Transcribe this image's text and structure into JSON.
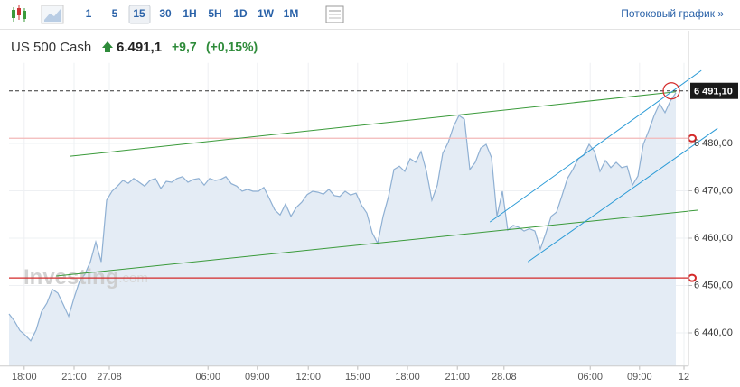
{
  "toolbar": {
    "intervals": [
      "1",
      "5",
      "15",
      "30",
      "1H",
      "5H",
      "1D",
      "1W",
      "1M"
    ],
    "selected": 2,
    "stream_link": "Потоковый график »"
  },
  "header": {
    "instrument": "US 500 Cash",
    "price": "6.491,1",
    "change": "+9,7",
    "change_pct": "(+0,15%)"
  },
  "watermark": {
    "brand": "Investing",
    "suffix": ".com"
  },
  "chart_data": {
    "type": "area",
    "color": "#8fb0d3",
    "fill": "#e4ecf5",
    "grid": true,
    "xlim": [
      0,
      125.33
    ],
    "ylim": [
      6433,
      6497
    ],
    "yticks": [
      {
        "value": 6440,
        "label": "6 440,00"
      },
      {
        "value": 6450,
        "label": "6 450,00"
      },
      {
        "value": 6460,
        "label": "6 460,00"
      },
      {
        "value": 6470,
        "label": "6 470,00"
      },
      {
        "value": 6480,
        "label": "6 480,00"
      }
    ],
    "xticks": [
      {
        "value": 2.8,
        "label": "18:00"
      },
      {
        "value": 12,
        "label": "21:00"
      },
      {
        "value": 18.5,
        "label": "27.08"
      },
      {
        "value": 36.7,
        "label": "06:00"
      },
      {
        "value": 45.8,
        "label": "09:00"
      },
      {
        "value": 55.2,
        "label": "12:00"
      },
      {
        "value": 64.3,
        "label": "15:00"
      },
      {
        "value": 73.5,
        "label": "18:00"
      },
      {
        "value": 82.7,
        "label": "21:00"
      },
      {
        "value": 91.3,
        "label": "28.08"
      },
      {
        "value": 107.2,
        "label": "06:00"
      },
      {
        "value": 116.3,
        "label": "09:00"
      },
      {
        "value": 124.5,
        "label": "12"
      }
    ],
    "last_price": {
      "value": 6491.1,
      "label": "6 491,10"
    },
    "series": [
      {
        "color": "#8fb0d3",
        "x": [
          0,
          1,
          2,
          3,
          4,
          5,
          6,
          7,
          8,
          9,
          10,
          11,
          12,
          13,
          14,
          15,
          16,
          17,
          18,
          19,
          20,
          21,
          22,
          23,
          24,
          25,
          26,
          27,
          28,
          29,
          30,
          31,
          32,
          33,
          34,
          35,
          36,
          37,
          38,
          39,
          40,
          41,
          42,
          43,
          44,
          45,
          46,
          47,
          48,
          49,
          50,
          51,
          52,
          53,
          54,
          55,
          56,
          57,
          58,
          59,
          60,
          61,
          62,
          63,
          64,
          65,
          66,
          67,
          68,
          69,
          70,
          71,
          72,
          73,
          74,
          75,
          76,
          77,
          78,
          79,
          80,
          81,
          82,
          83,
          84,
          85,
          86,
          87,
          88,
          89,
          90,
          91,
          92,
          93,
          94,
          95,
          96,
          97,
          98,
          99,
          100,
          101,
          102,
          103,
          104,
          105,
          106,
          107,
          108,
          109,
          110,
          111,
          112,
          113,
          114,
          115,
          116,
          117,
          118,
          119,
          120,
          121,
          122,
          123
        ],
        "values": [
          6444.0,
          6442.5,
          6440.5,
          6439.5,
          6438.3,
          6440.6,
          6444.5,
          6446.3,
          6449.2,
          6448.4,
          6446.0,
          6443.5,
          6447.4,
          6450.9,
          6452.4,
          6455.0,
          6459.2,
          6455.0,
          6468.0,
          6469.9,
          6471.0,
          6472.2,
          6471.6,
          6472.6,
          6471.8,
          6471.0,
          6472.2,
          6472.6,
          6470.5,
          6472.0,
          6471.8,
          6472.6,
          6473.0,
          6471.8,
          6472.4,
          6472.6,
          6471.2,
          6472.6,
          6472.2,
          6472.4,
          6473.0,
          6471.5,
          6471.0,
          6469.9,
          6470.3,
          6469.9,
          6469.9,
          6470.7,
          6468.4,
          6466.0,
          6464.9,
          6467.2,
          6464.6,
          6466.5,
          6467.6,
          6469.2,
          6469.9,
          6469.7,
          6469.3,
          6470.3,
          6469.0,
          6468.8,
          6469.9,
          6469.1,
          6469.5,
          6467.0,
          6465.3,
          6461.1,
          6458.9,
          6464.6,
          6468.8,
          6474.5,
          6475.2,
          6474.1,
          6476.8,
          6476.0,
          6478.3,
          6474.1,
          6468.0,
          6471.2,
          6477.9,
          6480.2,
          6483.6,
          6485.9,
          6485.1,
          6474.5,
          6476.0,
          6479.0,
          6479.8,
          6477.0,
          6464.6,
          6469.9,
          6461.7,
          6462.7,
          6462.3,
          6461.5,
          6462.0,
          6461.5,
          6457.7,
          6461.0,
          6464.6,
          6465.5,
          6469.0,
          6472.6,
          6474.5,
          6476.8,
          6477.5,
          6479.8,
          6478.3,
          6474.1,
          6476.4,
          6474.9,
          6476.0,
          6474.9,
          6475.2,
          6471.2,
          6473.1,
          6479.8,
          6482.7,
          6485.9,
          6488.4,
          6486.5,
          6489.0,
          6490.7
        ]
      }
    ],
    "drawings": [
      {
        "color": "#3a9a3a",
        "x": [
          11.3,
          123
        ],
        "y": [
          6477.3,
          6490.9
        ]
      },
      {
        "color": "#3a9a3a",
        "x": [
          8.7,
          127
        ],
        "y": [
          6452.0,
          6465.9
        ]
      },
      {
        "color": "#2a9ad6",
        "x": [
          88.7,
          127.7
        ],
        "y": [
          6463.4,
          6495.4
        ]
      },
      {
        "color": "#2a9ad6",
        "x": [
          95.7,
          130.7
        ],
        "y": [
          6455.0,
          6483.2
        ]
      }
    ],
    "levels": [
      {
        "value": 6481.1,
        "color": "#f3b8b8"
      },
      {
        "value": 6451.6,
        "color": "#d42a2a"
      }
    ]
  }
}
